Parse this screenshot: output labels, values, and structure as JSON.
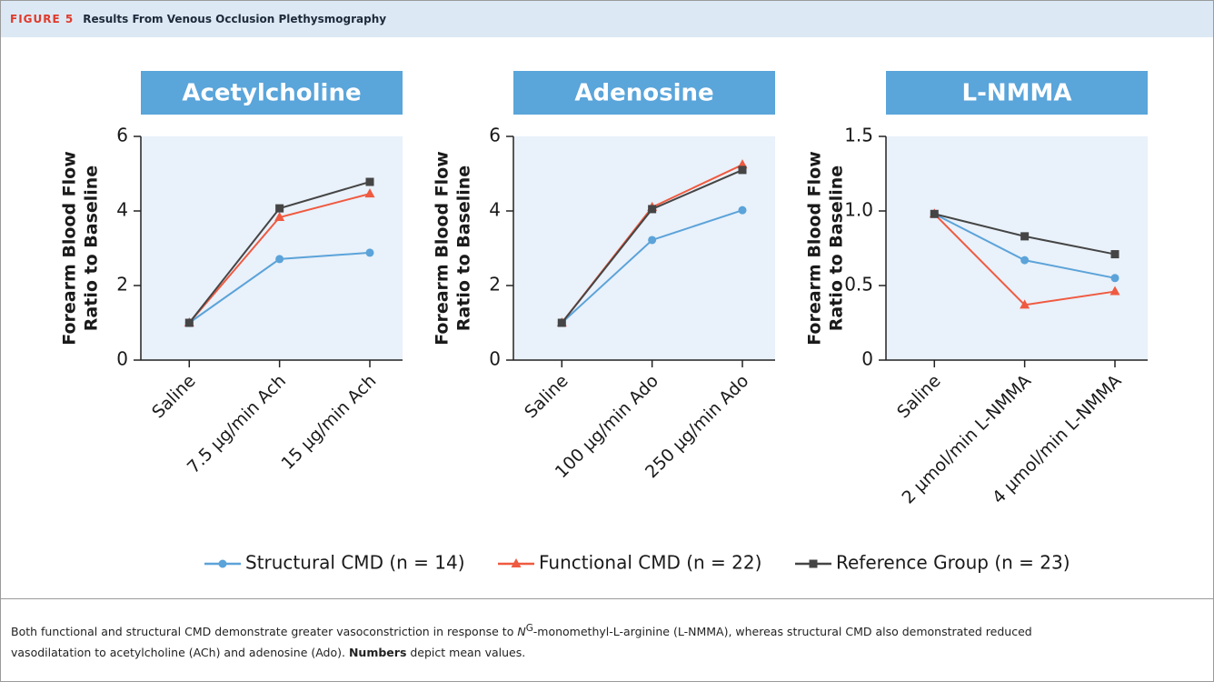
{
  "header": {
    "figure": "FIGURE 5",
    "title": "Results From Venous Occlusion Plethysmography"
  },
  "legend": [
    {
      "name": "Structural CMD (n = 14)",
      "color": "#5ba3d9",
      "marker": "circle"
    },
    {
      "name": "Functional CMD (n = 22)",
      "color": "#ef5a40",
      "marker": "triangle"
    },
    {
      "name": "Reference Group (n = 23)",
      "color": "#454545",
      "marker": "square"
    }
  ],
  "chart_data": [
    {
      "type": "line",
      "title": "Acetylcholine",
      "ylabel": [
        "Forearm Blood Flow",
        "Ratio to Baseline"
      ],
      "categories": [
        "Saline",
        "7.5 µg/min Ach",
        "15 µg/min Ach"
      ],
      "series": [
        {
          "values": [
            1,
            2.71,
            2.88
          ]
        },
        {
          "values": [
            1,
            3.83,
            4.46
          ]
        },
        {
          "values": [
            1,
            4.07,
            4.78
          ]
        }
      ],
      "ylim": [
        0,
        6
      ],
      "yticks": [
        0,
        2,
        4,
        6
      ]
    },
    {
      "type": "line",
      "title": "Adenosine",
      "ylabel": [
        "Forearm Blood Flow",
        "Ratio to Baseline"
      ],
      "categories": [
        "Saline",
        "100 µg/min Ado",
        "250 µg/min Ado"
      ],
      "series": [
        {
          "values": [
            1,
            3.22,
            4.02
          ]
        },
        {
          "values": [
            1,
            4.1,
            5.24
          ]
        },
        {
          "values": [
            1,
            4.05,
            5.1
          ]
        }
      ],
      "ylim": [
        0,
        6
      ],
      "yticks": [
        0,
        2,
        4,
        6
      ]
    },
    {
      "type": "line",
      "title": "L-NMMA",
      "ylabel": [
        "Forearm Blood Flow",
        "Ratio to Baseline"
      ],
      "categories": [
        "Saline",
        "2 µmol/min L-NMMA",
        "4 µmol/min L-NMMA"
      ],
      "series": [
        {
          "values": [
            0.98,
            0.67,
            0.55
          ]
        },
        {
          "values": [
            0.98,
            0.37,
            0.46
          ]
        },
        {
          "values": [
            0.98,
            0.83,
            0.71
          ]
        }
      ],
      "ylim": [
        0,
        1.5
      ],
      "yticks": [
        0,
        0.5,
        {
          "value": 1,
          "label": "1.0"
        },
        1.5
      ]
    }
  ],
  "caption": {
    "text1": "Both functional and structural CMD demonstrate greater vasoconstriction in response to ",
    "n": "N",
    "sup": "G",
    "text2": "-monomethyl-L-arginine (L-NMMA), whereas structural CMD also demonstrated reduced vasodilatation to acetylcholine (ACh) and adenosine (Ado). ",
    "bold": "Numbers",
    "text3": " depict mean values."
  }
}
